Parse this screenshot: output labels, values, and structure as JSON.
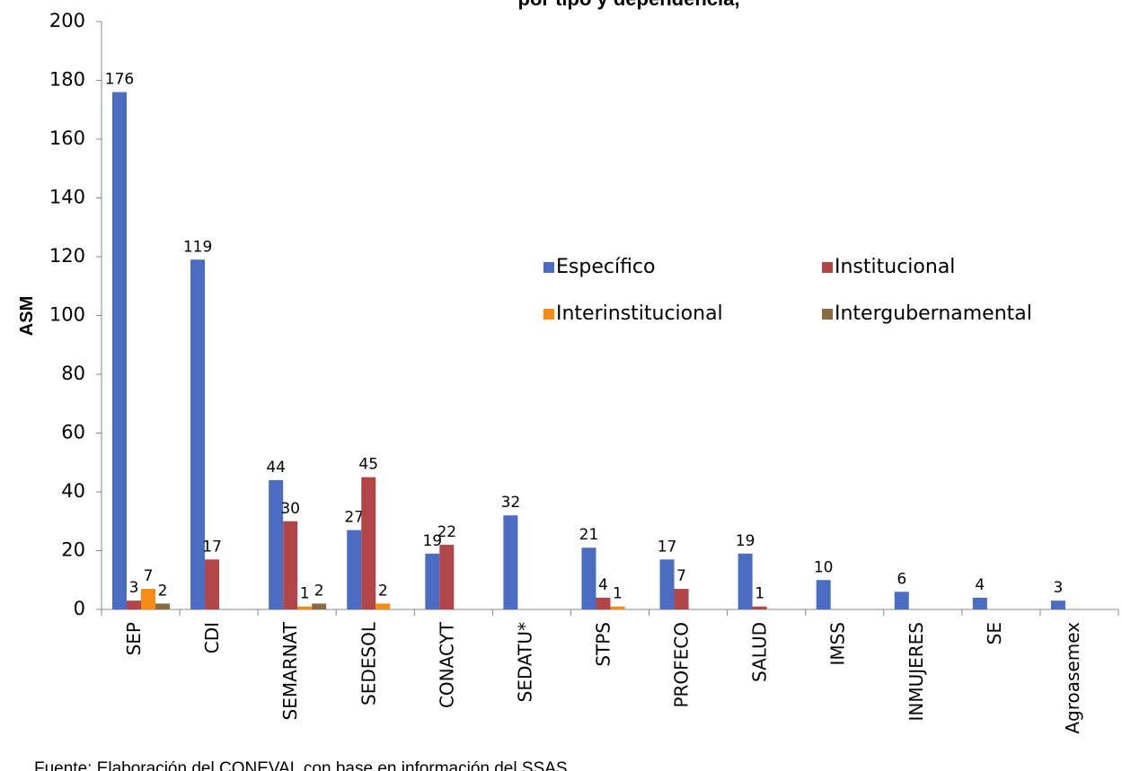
{
  "chart_data": {
    "type": "bar",
    "title": "por tipo y dependencia,",
    "y_label": "ASM",
    "footnote": "Fuente: Elaboración del CONEVAL con base en información del SSAS",
    "categories": [
      "SEP",
      "CDI",
      "SEMARNAT",
      "SEDESOL",
      "CONACYT",
      "SEDATU*",
      "STPS",
      "PROFECO",
      "SALUD",
      "IMSS",
      "INMUJERES",
      "SE",
      "Agroasemex"
    ],
    "series": [
      {
        "name": "Específico",
        "color": "#4a6cc2",
        "values": [
          176,
          119,
          44,
          27,
          19,
          32,
          21,
          17,
          19,
          10,
          6,
          4,
          3
        ]
      },
      {
        "name": "Institucional",
        "color": "#b14548",
        "values": [
          3,
          17,
          30,
          45,
          22,
          null,
          4,
          7,
          1,
          null,
          null,
          null,
          null
        ]
      },
      {
        "name": "Interinstitucional",
        "color": "#f78b13",
        "values": [
          7,
          null,
          1,
          2,
          null,
          null,
          1,
          null,
          null,
          null,
          null,
          null,
          null
        ]
      },
      {
        "name": "Intergubernamental",
        "color": "#8a6a40",
        "values": [
          2,
          null,
          2,
          null,
          null,
          null,
          null,
          null,
          null,
          null,
          null,
          null,
          null
        ]
      }
    ],
    "ylim": [
      0,
      200
    ],
    "yticks": [
      0,
      20,
      40,
      60,
      80,
      100,
      120,
      140,
      160,
      180,
      200
    ],
    "grid": false,
    "legend": "right"
  }
}
